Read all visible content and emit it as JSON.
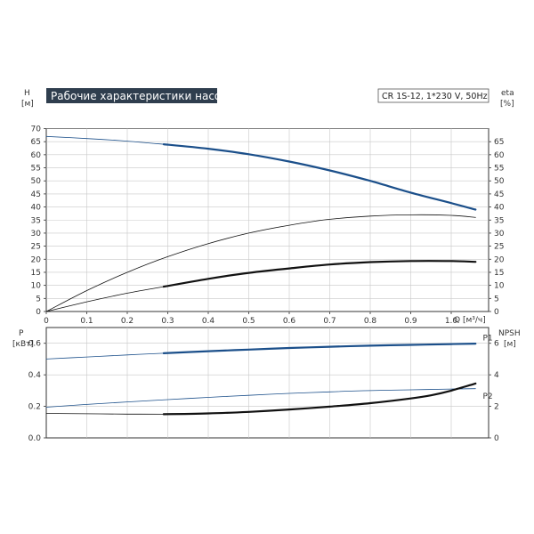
{
  "header": {
    "title": "Рабочие характеристики насоса",
    "model": "CR 1S-12, 1*230 V, 50Hz"
  },
  "colors": {
    "title_bg": "#2f3e4e",
    "blue": "#1b4f8a",
    "black": "#111111",
    "grid": "#c8c8c8"
  },
  "chart_data": [
    {
      "type": "line",
      "name": "top",
      "left_axis": {
        "label": "H",
        "unit": "[м]",
        "ylim": [
          0,
          70
        ],
        "ticks": [
          "0",
          "5",
          "10",
          "15",
          "20",
          "25",
          "30",
          "35",
          "40",
          "45",
          "50",
          "55",
          "60",
          "65",
          "70"
        ]
      },
      "right_axis": {
        "label": "eta",
        "unit": "[%]",
        "ylim": [
          0,
          70
        ],
        "ticks": [
          "0",
          "5",
          "10",
          "15",
          "20",
          "25",
          "30",
          "35",
          "40",
          "45",
          "50",
          "55",
          "60",
          "65"
        ]
      },
      "x_axis": {
        "label": "Q [м³/ч]",
        "xlim": [
          0,
          1.15
        ],
        "ticks": [
          "0",
          "0.1",
          "0.2",
          "0.3",
          "0.4",
          "0.5",
          "0.6",
          "0.7",
          "0.8",
          "0.9",
          "1.0"
        ]
      },
      "grid": true,
      "series": [
        {
          "id": "H-thin",
          "axis": "left",
          "color": "blue",
          "width": 0.8,
          "x": [
            0,
            0.1,
            0.2,
            0.29
          ],
          "y": [
            67,
            66.2,
            65.2,
            64
          ]
        },
        {
          "id": "H-thick",
          "axis": "left",
          "color": "blue",
          "width": 2.2,
          "x": [
            0.29,
            0.4,
            0.5,
            0.6,
            0.7,
            0.8,
            0.9,
            1.0,
            1.06
          ],
          "y": [
            64,
            62.3,
            60.2,
            57.4,
            54,
            50,
            45.5,
            41.5,
            39
          ]
        },
        {
          "id": "eta-upper",
          "axis": "right",
          "color": "black",
          "width": 0.8,
          "x": [
            0,
            0.1,
            0.2,
            0.3,
            0.4,
            0.5,
            0.6,
            0.7,
            0.8,
            0.9,
            1.0,
            1.06
          ],
          "y": [
            0,
            8,
            15,
            21,
            26,
            30,
            33,
            35.3,
            36.5,
            37,
            36.8,
            36
          ]
        },
        {
          "id": "eta-lower-thin",
          "axis": "right",
          "color": "black",
          "width": 0.8,
          "x": [
            0,
            0.1,
            0.2,
            0.29
          ],
          "y": [
            0,
            3.7,
            7,
            9.5
          ]
        },
        {
          "id": "eta-lower-thick",
          "axis": "right",
          "color": "black",
          "width": 2.2,
          "x": [
            0.29,
            0.4,
            0.5,
            0.6,
            0.7,
            0.8,
            0.9,
            1.0,
            1.06
          ],
          "y": [
            9.5,
            12.5,
            14.8,
            16.5,
            18,
            18.9,
            19.3,
            19.3,
            19
          ]
        }
      ]
    },
    {
      "type": "line",
      "name": "bottom",
      "left_axis": {
        "label": "P",
        "unit": "[кВт]",
        "ylim": [
          0,
          0.7
        ],
        "ticks": [
          "0.0",
          "0.2",
          "0.4",
          "0.6"
        ]
      },
      "right_axis": {
        "label": "NPSH",
        "unit": "[м]",
        "ylim": [
          0,
          7
        ],
        "ticks": [
          "0",
          "2",
          "4",
          "6"
        ]
      },
      "x_axis": {
        "xlim": [
          0,
          1.15
        ]
      },
      "grid": true,
      "labels": [
        {
          "text": "P1",
          "x": 1.1,
          "y": 0.635
        },
        {
          "text": "P2",
          "x": 1.1,
          "y": 0.265
        }
      ],
      "series": [
        {
          "id": "P1-thin",
          "axis": "left",
          "color": "blue",
          "width": 0.8,
          "x": [
            0,
            0.1,
            0.2,
            0.29
          ],
          "y": [
            0.5,
            0.513,
            0.526,
            0.537
          ]
        },
        {
          "id": "P1-thick",
          "axis": "left",
          "color": "blue",
          "width": 2.2,
          "x": [
            0.29,
            0.4,
            0.5,
            0.6,
            0.7,
            0.8,
            0.9,
            1.0,
            1.06
          ],
          "y": [
            0.537,
            0.55,
            0.56,
            0.57,
            0.578,
            0.585,
            0.59,
            0.595,
            0.598
          ]
        },
        {
          "id": "P2",
          "axis": "left",
          "color": "blue",
          "width": 0.8,
          "x": [
            0,
            0.1,
            0.2,
            0.3,
            0.4,
            0.5,
            0.6,
            0.7,
            0.8,
            0.9,
            1.0,
            1.06
          ],
          "y": [
            0.195,
            0.212,
            0.228,
            0.243,
            0.257,
            0.27,
            0.282,
            0.292,
            0.3,
            0.305,
            0.31,
            0.312
          ]
        },
        {
          "id": "NPSH-thin",
          "axis": "right",
          "color": "black",
          "width": 0.8,
          "x": [
            0,
            0.1,
            0.2,
            0.29
          ],
          "y": [
            1.55,
            1.53,
            1.51,
            1.5
          ]
        },
        {
          "id": "NPSH-thick",
          "axis": "right",
          "color": "black",
          "width": 2.2,
          "x": [
            0.29,
            0.4,
            0.5,
            0.6,
            0.7,
            0.8,
            0.9,
            0.95,
            1.0,
            1.06
          ],
          "y": [
            1.5,
            1.55,
            1.65,
            1.8,
            1.98,
            2.2,
            2.5,
            2.7,
            3.0,
            3.45
          ]
        }
      ]
    }
  ]
}
